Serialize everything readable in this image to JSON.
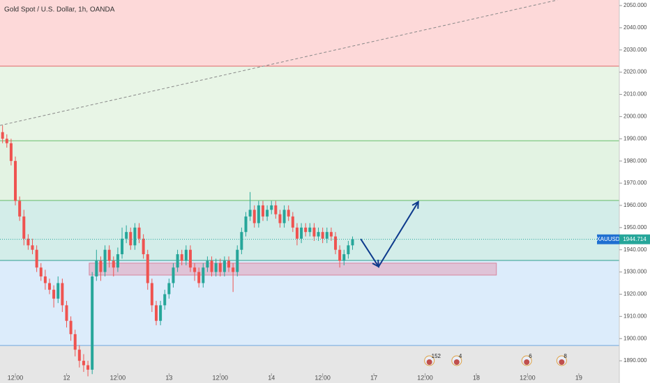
{
  "chart_data": {
    "type": "candlestick",
    "title": "Gold Spot / U.S. Dollar, 1h, OANDA",
    "symbol": "XAUUSD",
    "last_price": 1944.714,
    "up_color": "#26a69a",
    "down_color": "#ef5350",
    "xlim": [
      -3.6,
      141.5
    ],
    "ylim": [
      1880,
      2052.5
    ],
    "xticks": [
      {
        "value": 0,
        "label": "12:00"
      },
      {
        "value": 12,
        "label": "12"
      },
      {
        "value": 24,
        "label": "12:00"
      },
      {
        "value": 36,
        "label": "13"
      },
      {
        "value": 48,
        "label": "12:00"
      },
      {
        "value": 60,
        "label": "14"
      },
      {
        "value": 72,
        "label": "12:00"
      },
      {
        "value": 84,
        "label": "17"
      },
      {
        "value": 96,
        "label": "12:00"
      },
      {
        "value": 108,
        "label": "18"
      },
      {
        "value": 120,
        "label": "12:00"
      },
      {
        "value": 132,
        "label": "19"
      }
    ],
    "yticks": [
      {
        "value": 1890,
        "label": "1890.000"
      },
      {
        "value": 1900,
        "label": "1900.000"
      },
      {
        "value": 1910,
        "label": "1910.000"
      },
      {
        "value": 1920,
        "label": "1920.000"
      },
      {
        "value": 1930,
        "label": "1930.000"
      },
      {
        "value": 1940,
        "label": "1940.000"
      },
      {
        "value": 1950,
        "label": "1950.000"
      },
      {
        "value": 1960,
        "label": "1960.000"
      },
      {
        "value": 1970,
        "label": "1970.000"
      },
      {
        "value": 1980,
        "label": "1980.000"
      },
      {
        "value": 1990,
        "label": "1990.000"
      },
      {
        "value": 2000,
        "label": "2000.000"
      },
      {
        "value": 2010,
        "label": "2010.000"
      },
      {
        "value": 2020,
        "label": "2020.000"
      },
      {
        "value": 2030,
        "label": "2030.000"
      },
      {
        "value": 2040,
        "label": "2040.000"
      },
      {
        "value": 2050,
        "label": "2050.000"
      }
    ],
    "levels": [
      1896.9,
      1935.2,
      1962.2,
      1989.1,
      2022.7
    ],
    "level_colors": [
      "#6fa8dc",
      "#2e9e8f",
      "#66bb6a",
      "#66bb6a",
      "#e06666"
    ],
    "zone_colors": [
      "#e6e6e6",
      "#dcecfb",
      "#d3ede9",
      "#e3f3e3",
      "#e8f5e6",
      "#fdd9d9"
    ],
    "x": [
      -3,
      -2,
      -1,
      0,
      1,
      2,
      3,
      4,
      5,
      6,
      7,
      8,
      9,
      10,
      11,
      12,
      13,
      14,
      15,
      16,
      17,
      18,
      19,
      20,
      21,
      22,
      23,
      24,
      25,
      26,
      27,
      28,
      29,
      30,
      31,
      32,
      33,
      34,
      35,
      36,
      37,
      38,
      39,
      40,
      41,
      42,
      43,
      44,
      45,
      46,
      47,
      48,
      49,
      50,
      51,
      52,
      53,
      54,
      55,
      56,
      57,
      58,
      59,
      60,
      61,
      62,
      63,
      64,
      65,
      66,
      67,
      68,
      69,
      70,
      71,
      72,
      73,
      74,
      75,
      76,
      77,
      78,
      79
    ],
    "open": [
      1993,
      1990,
      1988,
      1980,
      1962,
      1955,
      1945,
      1942,
      1940,
      1932,
      1928,
      1925,
      1922,
      1918,
      1925,
      1915,
      1908,
      1902,
      1895,
      1890,
      1888,
      1886,
      1928,
      1935,
      1930,
      1940,
      1935,
      1932,
      1938,
      1945,
      1948,
      1942,
      1950,
      1945,
      1938,
      1925,
      1915,
      1908,
      1915,
      1920,
      1925,
      1932,
      1938,
      1935,
      1940,
      1932,
      1930,
      1925,
      1932,
      1935,
      1930,
      1934,
      1930,
      1935,
      1932,
      1930,
      1940,
      1948,
      1955,
      1958,
      1952,
      1960,
      1955,
      1958,
      1960,
      1956,
      1952,
      1958,
      1955,
      1950,
      1945,
      1950,
      1948,
      1950,
      1946,
      1948,
      1945,
      1948,
      1946,
      1940,
      1935,
      1938,
      1942
    ],
    "high": [
      1996,
      1992,
      1990,
      1982,
      1964,
      1958,
      1947,
      1945,
      1942,
      1934,
      1931,
      1927,
      1924,
      1928,
      1927,
      1917,
      1910,
      1904,
      1897,
      1893,
      1890,
      1930,
      1940,
      1937,
      1942,
      1942,
      1937,
      1941,
      1950,
      1951,
      1950,
      1952,
      1952,
      1947,
      1940,
      1927,
      1917,
      1917,
      1922,
      1927,
      1934,
      1940,
      1940,
      1942,
      1942,
      1934,
      1932,
      1934,
      1937,
      1937,
      1936,
      1936,
      1937,
      1937,
      1934,
      1942,
      1950,
      1957,
      1966,
      1960,
      1962,
      1962,
      1960,
      1962,
      1962,
      1958,
      1960,
      1960,
      1957,
      1952,
      1952,
      1952,
      1952,
      1952,
      1950,
      1950,
      1950,
      1950,
      1948,
      1942,
      1940,
      1944,
      1946
    ],
    "low": [
      1988,
      1986,
      1978,
      1960,
      1953,
      1942,
      1940,
      1938,
      1930,
      1926,
      1922,
      1920,
      1914,
      1916,
      1912,
      1905,
      1899,
      1892,
      1887,
      1885,
      1883,
      1884,
      1926,
      1926,
      1928,
      1932,
      1928,
      1930,
      1936,
      1943,
      1940,
      1940,
      1943,
      1936,
      1922,
      1912,
      1906,
      1906,
      1913,
      1918,
      1923,
      1930,
      1933,
      1933,
      1930,
      1926,
      1923,
      1923,
      1930,
      1928,
      1928,
      1928,
      1928,
      1930,
      1921,
      1928,
      1938,
      1946,
      1953,
      1950,
      1950,
      1953,
      1953,
      1956,
      1954,
      1950,
      1950,
      1953,
      1948,
      1942,
      1943,
      1946,
      1946,
      1944,
      1944,
      1943,
      1943,
      1944,
      1938,
      1932,
      1933,
      1936,
      1940
    ],
    "close": [
      1990,
      1988,
      1980,
      1962,
      1955,
      1945,
      1942,
      1940,
      1932,
      1928,
      1925,
      1922,
      1918,
      1925,
      1915,
      1908,
      1902,
      1895,
      1890,
      1888,
      1886,
      1928,
      1935,
      1930,
      1940,
      1935,
      1932,
      1938,
      1945,
      1948,
      1942,
      1950,
      1945,
      1938,
      1925,
      1915,
      1908,
      1915,
      1920,
      1925,
      1932,
      1938,
      1935,
      1940,
      1932,
      1930,
      1925,
      1932,
      1935,
      1930,
      1934,
      1930,
      1935,
      1932,
      1930,
      1940,
      1948,
      1955,
      1958,
      1952,
      1960,
      1955,
      1958,
      1960,
      1956,
      1952,
      1958,
      1955,
      1950,
      1945,
      1950,
      1948,
      1950,
      1946,
      1948,
      1945,
      1948,
      1946,
      1940,
      1935,
      1938,
      1942,
      1944.714
    ],
    "trend_line": {
      "x": [
        -3.6,
        127
      ],
      "y": [
        1996,
        2052.5
      ]
    },
    "zone_box": {
      "x": [
        17.3,
        112.7
      ],
      "y": [
        1928.6,
        1934
      ]
    },
    "arrow": {
      "x": [
        80.9,
        85.1,
        94.4
      ],
      "y": [
        1944.9,
        1932.4,
        1961.6
      ]
    },
    "events": [
      {
        "x": 97,
        "label": "152"
      },
      {
        "x": 103.4,
        "label": "4"
      },
      {
        "x": 119.8,
        "label": "6"
      },
      {
        "x": 128,
        "label": "8"
      }
    ]
  }
}
